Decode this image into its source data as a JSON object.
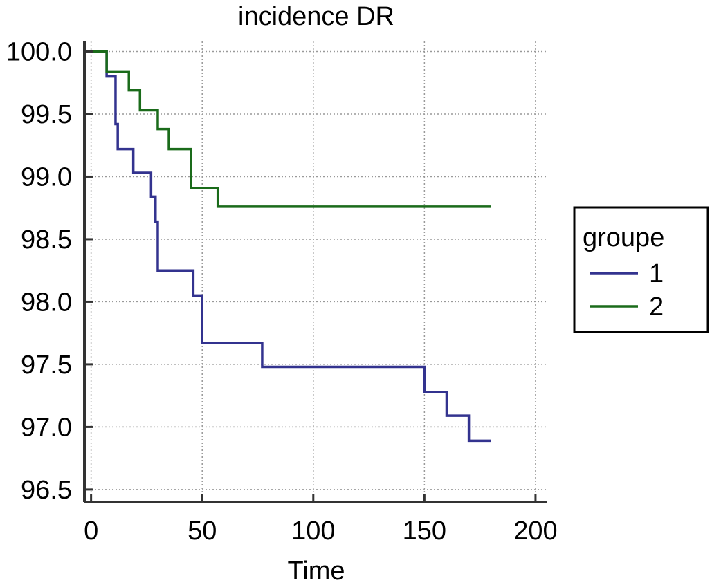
{
  "chart_data": {
    "type": "line",
    "step": true,
    "title": "incidence DR",
    "xlabel": "Time",
    "ylabel": "",
    "xlim": [
      -3,
      205
    ],
    "ylim": [
      96.4,
      100.08
    ],
    "xticks": [
      0,
      50,
      100,
      150,
      200
    ],
    "yticks": [
      96.5,
      97.0,
      97.5,
      98.0,
      98.5,
      99.0,
      99.5,
      100.0
    ],
    "grid": true,
    "legend": {
      "title": "groupe",
      "position": "right"
    },
    "series": [
      {
        "name": "1",
        "color": "#33338f",
        "x": [
          0,
          7,
          11,
          12,
          19,
          27,
          29,
          30,
          46,
          50,
          77,
          150,
          160,
          170,
          180
        ],
        "y": [
          100.0,
          99.8,
          99.42,
          99.22,
          99.03,
          98.84,
          98.64,
          98.25,
          98.05,
          97.67,
          97.48,
          97.28,
          97.09,
          96.89,
          96.89
        ]
      },
      {
        "name": "2",
        "color": "#1a6b1a",
        "x": [
          0,
          7,
          17,
          22,
          30,
          35,
          45,
          57,
          180
        ],
        "y": [
          100.0,
          99.84,
          99.69,
          99.53,
          99.38,
          99.22,
          98.91,
          98.76,
          98.76
        ]
      }
    ]
  }
}
